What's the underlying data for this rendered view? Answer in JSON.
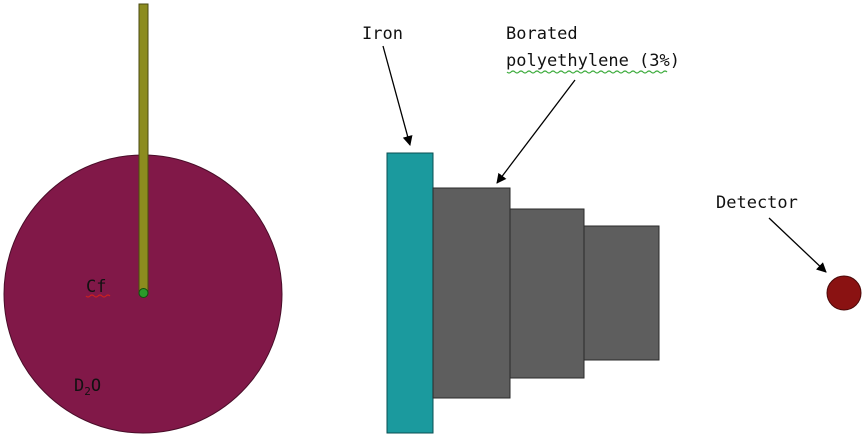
{
  "colors": {
    "d2o_sphere": "#811848",
    "rod": "#8c8c1f",
    "rod_tip": "#2a9a2a",
    "iron": "#1b9a9e",
    "polyethylene": "#5e5e5e",
    "detector": "#8a1212",
    "cf_underline": "#cc2020",
    "poly_underline": "#3aaa3a"
  },
  "labels": {
    "iron": "Iron",
    "borated_line1": "Borated",
    "borated_line2": "polyethylene (3%)",
    "detector": "Detector",
    "cf": "Cf",
    "d2o_main": "D",
    "d2o_sub": "2",
    "d2o_tail": "O"
  }
}
